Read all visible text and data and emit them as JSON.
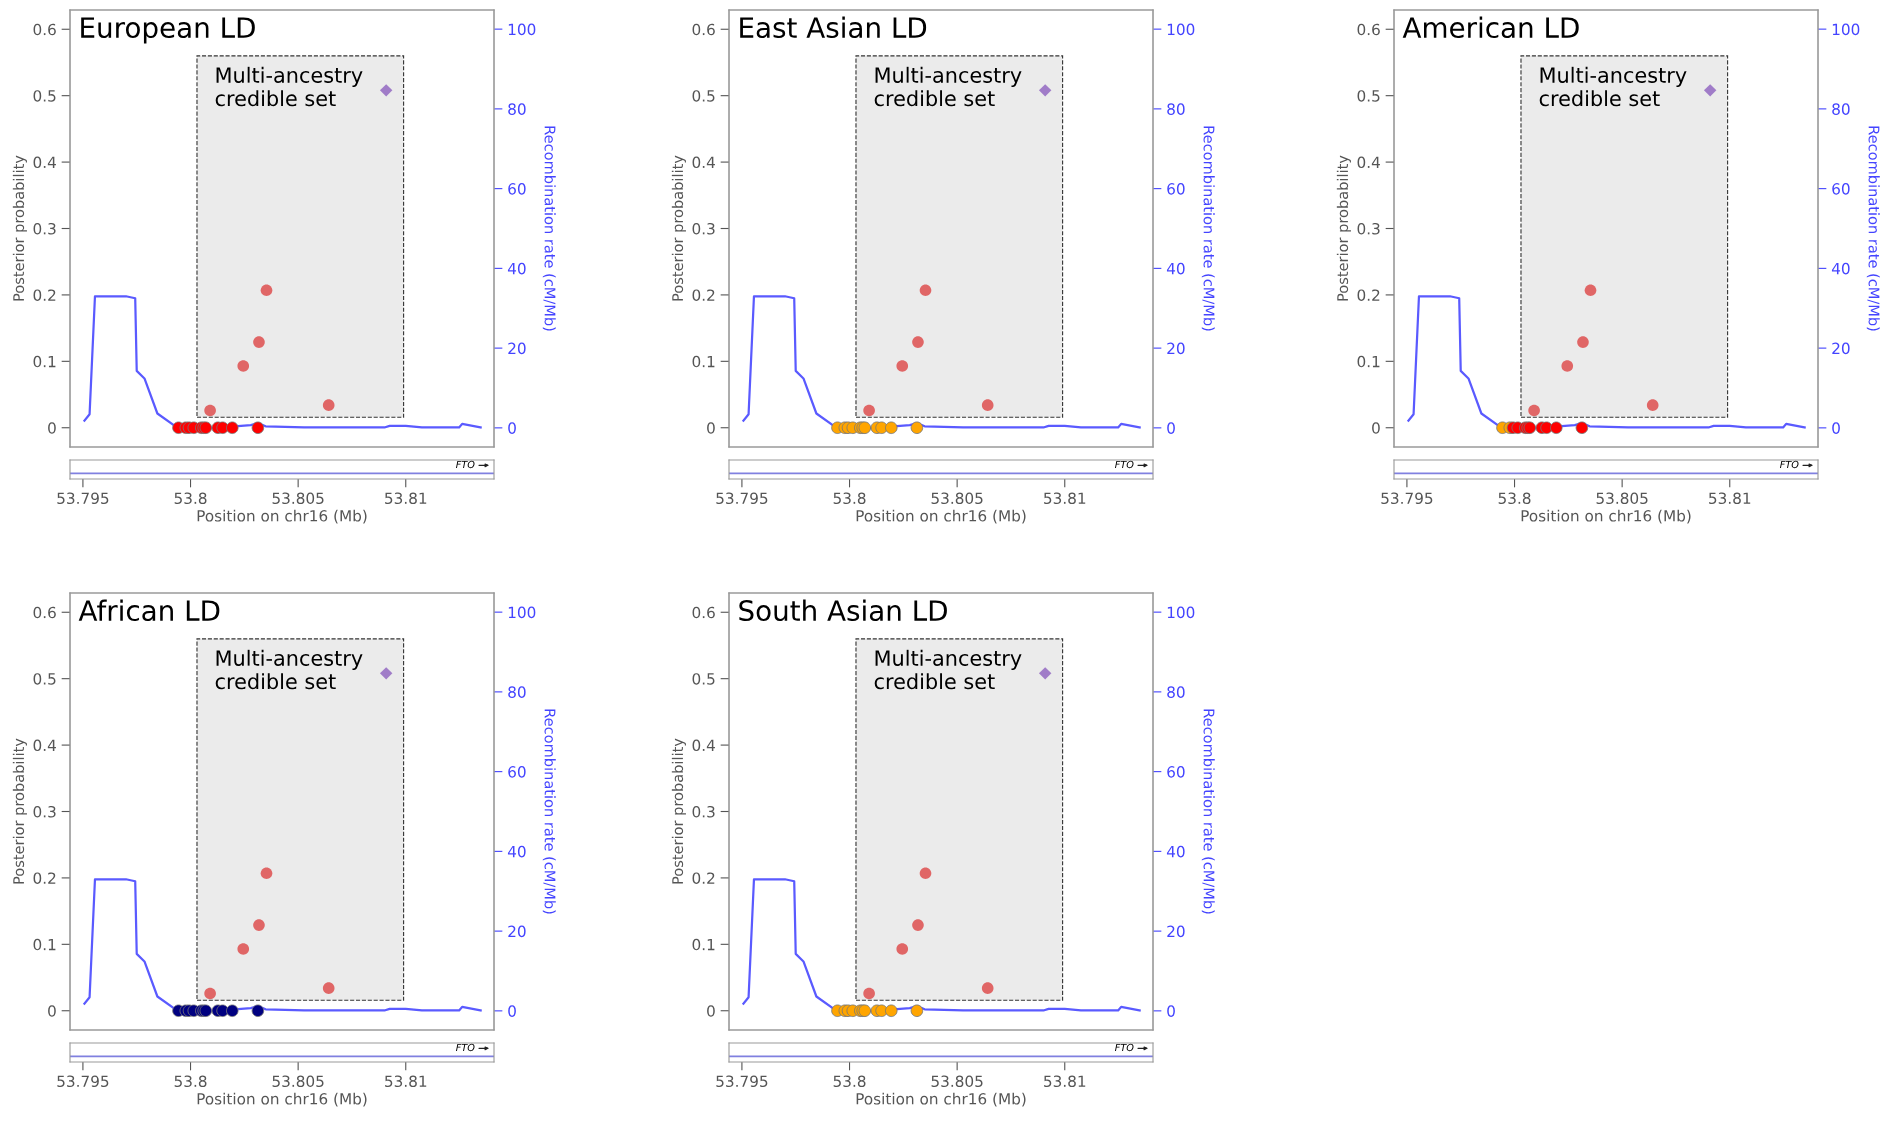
{
  "chart_data": [
    {
      "type": "scatter",
      "title": "European LD",
      "xlabel": "Position on chr16 (Mb)",
      "ylabel": "Posterior probability",
      "y2label": "Recombination rate (cM/Mb)",
      "xlim": [
        53.7944,
        53.8141
      ],
      "xticks": [
        53.795,
        53.8,
        53.805,
        53.81
      ],
      "ylim": [
        -0.029,
        0.629
      ],
      "yticks": [
        0,
        0.1,
        0.2,
        0.3,
        0.4,
        0.5,
        0.6
      ],
      "y2lim": [
        -4.8,
        104.8
      ],
      "y2ticks": [
        0,
        20,
        40,
        60,
        80,
        100
      ],
      "annotations": [
        "FTO"
      ],
      "bands": [
        {
          "axis": "x",
          "from": 53.8003,
          "to": 53.8099,
          "label": "Multi-ancestry credible set",
          "color": "#ebebeb"
        }
      ],
      "series": [
        {
          "type": "line",
          "axis": "y2",
          "color": "#5a5aff",
          "x": [
            53.79507,
            53.79531,
            53.79556,
            53.797,
            53.79743,
            53.7975,
            53.79786,
            53.79846,
            53.7994,
            53.80114,
            53.8028,
            53.80313,
            53.80349,
            53.80528,
            53.80901,
            53.80925,
            53.81,
            53.81075,
            53.81248,
            53.81262,
            53.81348
          ],
          "values": [
            1.8,
            3.4,
            33,
            33,
            32.5,
            14.3,
            12.4,
            3.6,
            0,
            0,
            0.7,
            1.2,
            0.4,
            0.1,
            0.1,
            0.5,
            0.5,
            0.1,
            0.1,
            1,
            0.1
          ]
        },
        {
          "type": "scatter",
          "marker": "circle",
          "x": [
            53.79944,
            53.79978,
            53.79993,
            53.80015,
            53.8005,
            53.80061,
            53.80071,
            53.80127,
            53.80149,
            53.80194,
            53.80313
          ],
          "values": [
            0,
            0,
            0,
            0,
            0,
            0,
            0,
            0,
            0,
            0,
            0
          ],
          "colors": [
            "#ff0000",
            "#ff0000",
            "#ff0000",
            "#ff0000",
            "#ff0000",
            "#ff0000",
            "#ff0000",
            "#ff0000",
            "#ff0000",
            "#ff0000",
            "#ff0000"
          ]
        },
        {
          "type": "scatter",
          "marker": "circle",
          "color": "#e06666",
          "x": [
            53.80091,
            53.80245,
            53.80318,
            53.80353,
            53.80642
          ],
          "values": [
            0.026,
            0.093,
            0.129,
            0.207,
            0.034
          ]
        },
        {
          "type": "scatter",
          "marker": "diamond",
          "color": "#a07cc8",
          "x": [
            53.80909
          ],
          "values": [
            0.508
          ]
        }
      ]
    },
    {
      "type": "scatter",
      "title": "East Asian LD",
      "xlabel": "Position on chr16 (Mb)",
      "ylabel": "Posterior probability",
      "y2label": "Recombination rate (cM/Mb)",
      "xlim": [
        53.7944,
        53.8141
      ],
      "xticks": [
        53.795,
        53.8,
        53.805,
        53.81
      ],
      "ylim": [
        -0.029,
        0.629
      ],
      "yticks": [
        0,
        0.1,
        0.2,
        0.3,
        0.4,
        0.5,
        0.6
      ],
      "y2lim": [
        -4.8,
        104.8
      ],
      "y2ticks": [
        0,
        20,
        40,
        60,
        80,
        100
      ],
      "annotations": [
        "FTO"
      ],
      "bands": [
        {
          "axis": "x",
          "from": 53.8003,
          "to": 53.8099,
          "label": "Multi-ancestry credible set",
          "color": "#ebebeb"
        }
      ],
      "series": [
        {
          "type": "line",
          "axis": "y2",
          "color": "#5a5aff",
          "x": [
            53.79507,
            53.79531,
            53.79556,
            53.797,
            53.79743,
            53.7975,
            53.79786,
            53.79846,
            53.7994,
            53.80114,
            53.8028,
            53.80313,
            53.80349,
            53.80528,
            53.80901,
            53.80925,
            53.81,
            53.81075,
            53.81248,
            53.81262,
            53.81348
          ],
          "values": [
            1.8,
            3.4,
            33,
            33,
            32.5,
            14.3,
            12.4,
            3.6,
            0,
            0,
            0.7,
            1.2,
            0.4,
            0.1,
            0.1,
            0.5,
            0.5,
            0.1,
            0.1,
            1,
            0.1
          ]
        },
        {
          "type": "scatter",
          "marker": "circle",
          "x": [
            53.79944,
            53.79978,
            53.79993,
            53.80015,
            53.8005,
            53.80061,
            53.80071,
            53.80127,
            53.80149,
            53.80194,
            53.80313
          ],
          "values": [
            0,
            0,
            0,
            0,
            0,
            0,
            0,
            0,
            0,
            0,
            0
          ],
          "colors": [
            "#ffa500",
            "#ffa500",
            "#ffa500",
            "#ffa500",
            "#ffa500",
            "#ffa500",
            "#ffa500",
            "#ffa500",
            "#ffa500",
            "#ffa500",
            "#ffa500"
          ]
        },
        {
          "type": "scatter",
          "marker": "circle",
          "color": "#e06666",
          "x": [
            53.80091,
            53.80245,
            53.80318,
            53.80353,
            53.80642
          ],
          "values": [
            0.026,
            0.093,
            0.129,
            0.207,
            0.034
          ]
        },
        {
          "type": "scatter",
          "marker": "diamond",
          "color": "#a07cc8",
          "x": [
            53.80909
          ],
          "values": [
            0.508
          ]
        }
      ]
    },
    {
      "type": "scatter",
      "title": "American LD",
      "xlabel": "Position on chr16 (Mb)",
      "ylabel": "Posterior probability",
      "y2label": "Recombination rate (cM/Mb)",
      "xlim": [
        53.7944,
        53.8141
      ],
      "xticks": [
        53.795,
        53.8,
        53.805,
        53.81
      ],
      "ylim": [
        -0.029,
        0.629
      ],
      "yticks": [
        0,
        0.1,
        0.2,
        0.3,
        0.4,
        0.5,
        0.6
      ],
      "y2lim": [
        -4.8,
        104.8
      ],
      "y2ticks": [
        0,
        20,
        40,
        60,
        80,
        100
      ],
      "annotations": [
        "FTO"
      ],
      "bands": [
        {
          "axis": "x",
          "from": 53.8003,
          "to": 53.8099,
          "label": "Multi-ancestry credible set",
          "color": "#ebebeb"
        }
      ],
      "series": [
        {
          "type": "line",
          "axis": "y2",
          "color": "#5a5aff",
          "x": [
            53.79507,
            53.79531,
            53.79556,
            53.797,
            53.79743,
            53.7975,
            53.79786,
            53.79846,
            53.7994,
            53.80114,
            53.8028,
            53.80313,
            53.80349,
            53.80528,
            53.80901,
            53.80925,
            53.81,
            53.81075,
            53.81248,
            53.81262,
            53.81348
          ],
          "values": [
            1.8,
            3.4,
            33,
            33,
            32.5,
            14.3,
            12.4,
            3.6,
            0,
            0,
            0.7,
            1.2,
            0.4,
            0.1,
            0.1,
            0.5,
            0.5,
            0.1,
            0.1,
            1,
            0.1
          ]
        },
        {
          "type": "scatter",
          "marker": "circle",
          "x": [
            53.79944,
            53.79978,
            53.79993,
            53.80015,
            53.8005,
            53.80061,
            53.80071,
            53.80127,
            53.80149,
            53.80194,
            53.80313
          ],
          "values": [
            0,
            0,
            0,
            0,
            0,
            0,
            0,
            0,
            0,
            0,
            0
          ],
          "colors": [
            "#ffa500",
            "#ffa500",
            "#ff0000",
            "#ff0000",
            "#ff0000",
            "#ff0000",
            "#ff0000",
            "#ff0000",
            "#ff0000",
            "#ff0000",
            "#ff0000"
          ]
        },
        {
          "type": "scatter",
          "marker": "circle",
          "color": "#e06666",
          "x": [
            53.80091,
            53.80245,
            53.80318,
            53.80353,
            53.80642
          ],
          "values": [
            0.026,
            0.093,
            0.129,
            0.207,
            0.034
          ]
        },
        {
          "type": "scatter",
          "marker": "diamond",
          "color": "#a07cc8",
          "x": [
            53.80909
          ],
          "values": [
            0.508
          ]
        }
      ]
    },
    {
      "type": "scatter",
      "title": "African LD",
      "xlabel": "Position on chr16 (Mb)",
      "ylabel": "Posterior probability",
      "y2label": "Recombination rate (cM/Mb)",
      "xlim": [
        53.7944,
        53.8141
      ],
      "xticks": [
        53.795,
        53.8,
        53.805,
        53.81
      ],
      "ylim": [
        -0.029,
        0.629
      ],
      "yticks": [
        0,
        0.1,
        0.2,
        0.3,
        0.4,
        0.5,
        0.6
      ],
      "y2lim": [
        -4.8,
        104.8
      ],
      "y2ticks": [
        0,
        20,
        40,
        60,
        80,
        100
      ],
      "annotations": [
        "FTO"
      ],
      "bands": [
        {
          "axis": "x",
          "from": 53.8003,
          "to": 53.8099,
          "label": "Multi-ancestry credible set",
          "color": "#ebebeb"
        }
      ],
      "series": [
        {
          "type": "line",
          "axis": "y2",
          "color": "#5a5aff",
          "x": [
            53.79507,
            53.79531,
            53.79556,
            53.797,
            53.79743,
            53.7975,
            53.79786,
            53.79846,
            53.7994,
            53.80114,
            53.8028,
            53.80313,
            53.80349,
            53.80528,
            53.80901,
            53.80925,
            53.81,
            53.81075,
            53.81248,
            53.81262,
            53.81348
          ],
          "values": [
            1.8,
            3.4,
            33,
            33,
            32.5,
            14.3,
            12.4,
            3.6,
            0,
            0,
            0.7,
            1.2,
            0.4,
            0.1,
            0.1,
            0.5,
            0.5,
            0.1,
            0.1,
            1,
            0.1
          ]
        },
        {
          "type": "scatter",
          "marker": "circle",
          "x": [
            53.79944,
            53.79978,
            53.79993,
            53.80015,
            53.8005,
            53.80061,
            53.80071,
            53.80127,
            53.80149,
            53.80194,
            53.80313
          ],
          "values": [
            0,
            0,
            0,
            0,
            0,
            0,
            0,
            0,
            0,
            0,
            0
          ],
          "colors": [
            "#000080",
            "#000080",
            "#000080",
            "#000080",
            "#000080",
            "#000080",
            "#000080",
            "#000080",
            "#000080",
            "#000080",
            "#000080"
          ]
        },
        {
          "type": "scatter",
          "marker": "circle",
          "color": "#e06666",
          "x": [
            53.80091,
            53.80245,
            53.80318,
            53.80353,
            53.80642
          ],
          "values": [
            0.026,
            0.093,
            0.129,
            0.207,
            0.034
          ]
        },
        {
          "type": "scatter",
          "marker": "diamond",
          "color": "#a07cc8",
          "x": [
            53.80909
          ],
          "values": [
            0.508
          ]
        }
      ]
    },
    {
      "type": "scatter",
      "title": "South Asian LD",
      "xlabel": "Position on chr16 (Mb)",
      "ylabel": "Posterior probability",
      "y2label": "Recombination rate (cM/Mb)",
      "xlim": [
        53.7944,
        53.8141
      ],
      "xticks": [
        53.795,
        53.8,
        53.805,
        53.81
      ],
      "ylim": [
        -0.029,
        0.629
      ],
      "yticks": [
        0,
        0.1,
        0.2,
        0.3,
        0.4,
        0.5,
        0.6
      ],
      "y2lim": [
        -4.8,
        104.8
      ],
      "y2ticks": [
        0,
        20,
        40,
        60,
        80,
        100
      ],
      "annotations": [
        "FTO"
      ],
      "bands": [
        {
          "axis": "x",
          "from": 53.8003,
          "to": 53.8099,
          "label": "Multi-ancestry credible set",
          "color": "#ebebeb"
        }
      ],
      "series": [
        {
          "type": "line",
          "axis": "y2",
          "color": "#5a5aff",
          "x": [
            53.79507,
            53.79531,
            53.79556,
            53.797,
            53.79743,
            53.7975,
            53.79786,
            53.79846,
            53.7994,
            53.80114,
            53.8028,
            53.80313,
            53.80349,
            53.80528,
            53.80901,
            53.80925,
            53.81,
            53.81075,
            53.81248,
            53.81262,
            53.81348
          ],
          "values": [
            1.8,
            3.4,
            33,
            33,
            32.5,
            14.3,
            12.4,
            3.6,
            0,
            0,
            0.7,
            1.2,
            0.4,
            0.1,
            0.1,
            0.5,
            0.5,
            0.1,
            0.1,
            1,
            0.1
          ]
        },
        {
          "type": "scatter",
          "marker": "circle",
          "x": [
            53.79944,
            53.79978,
            53.79993,
            53.80015,
            53.8005,
            53.80061,
            53.80071,
            53.80127,
            53.80149,
            53.80194,
            53.80313
          ],
          "values": [
            0,
            0,
            0,
            0,
            0,
            0,
            0,
            0,
            0,
            0,
            0
          ],
          "colors": [
            "#ffa500",
            "#ffa500",
            "#ffa500",
            "#ffa500",
            "#ffa500",
            "#ffa500",
            "#ffa500",
            "#ffa500",
            "#ffa500",
            "#ffa500",
            "#ffa500"
          ]
        },
        {
          "type": "scatter",
          "marker": "circle",
          "color": "#e06666",
          "x": [
            53.80091,
            53.80245,
            53.80318,
            53.80353,
            53.80642
          ],
          "values": [
            0.026,
            0.093,
            0.129,
            0.207,
            0.034
          ]
        },
        {
          "type": "scatter",
          "marker": "diamond",
          "color": "#a07cc8",
          "x": [
            53.80909
          ],
          "values": [
            0.508
          ]
        }
      ]
    }
  ]
}
